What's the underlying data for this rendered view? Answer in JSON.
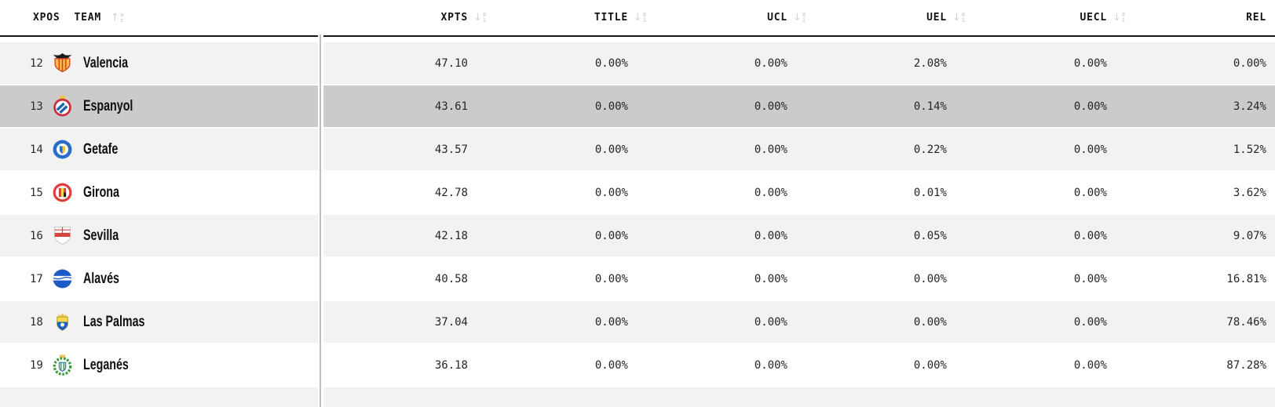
{
  "table": {
    "columns": [
      {
        "id": "xpos",
        "label": "XPOS",
        "sortable": false,
        "sort_icon": null
      },
      {
        "id": "team",
        "label": "TEAM",
        "sortable": true,
        "sort_icon": "sort-alpha-icon"
      },
      {
        "id": "xpts",
        "label": "XPTS",
        "sortable": true,
        "sort_icon": "sort-numeric-icon"
      },
      {
        "id": "title",
        "label": "TITLE",
        "sortable": true,
        "sort_icon": "sort-numeric-icon"
      },
      {
        "id": "ucl",
        "label": "UCL",
        "sortable": true,
        "sort_icon": "sort-numeric-icon"
      },
      {
        "id": "uel",
        "label": "UEL",
        "sortable": true,
        "sort_icon": "sort-numeric-icon"
      },
      {
        "id": "uecl",
        "label": "UECL",
        "sortable": true,
        "sort_icon": "sort-numeric-icon"
      },
      {
        "id": "rel",
        "label": "REL",
        "sortable": true,
        "sort_icon": "sort-numeric-icon"
      }
    ],
    "rows": [
      {
        "xpos": "12",
        "team": "Valencia",
        "crest": "valencia-crest",
        "crest_id": "valencia",
        "xpts": "47.10",
        "title": "0.00%",
        "ucl": "0.00%",
        "uel": "2.08%",
        "uecl": "0.00%",
        "rel": "0.00%",
        "zebra": "gray",
        "highlighted": false
      },
      {
        "xpos": "13",
        "team": "Espanyol",
        "crest": "espanyol-crest",
        "crest_id": "espanyol",
        "xpts": "43.61",
        "title": "0.00%",
        "ucl": "0.00%",
        "uel": "0.14%",
        "uecl": "0.00%",
        "rel": "3.24%",
        "zebra": "white",
        "highlighted": true
      },
      {
        "xpos": "14",
        "team": "Getafe",
        "crest": "getafe-crest",
        "crest_id": "getafe",
        "xpts": "43.57",
        "title": "0.00%",
        "ucl": "0.00%",
        "uel": "0.22%",
        "uecl": "0.00%",
        "rel": "1.52%",
        "zebra": "gray",
        "highlighted": false
      },
      {
        "xpos": "15",
        "team": "Girona",
        "crest": "girona-crest",
        "crest_id": "girona",
        "xpts": "42.78",
        "title": "0.00%",
        "ucl": "0.00%",
        "uel": "0.01%",
        "uecl": "0.00%",
        "rel": "3.62%",
        "zebra": "white",
        "highlighted": false
      },
      {
        "xpos": "16",
        "team": "Sevilla",
        "crest": "sevilla-crest",
        "crest_id": "sevilla",
        "xpts": "42.18",
        "title": "0.00%",
        "ucl": "0.00%",
        "uel": "0.05%",
        "uecl": "0.00%",
        "rel": "9.07%",
        "zebra": "gray",
        "highlighted": false
      },
      {
        "xpos": "17",
        "team": "Alavés",
        "crest": "alaves-crest",
        "crest_id": "alaves",
        "xpts": "40.58",
        "title": "0.00%",
        "ucl": "0.00%",
        "uel": "0.00%",
        "uecl": "0.00%",
        "rel": "16.81%",
        "zebra": "white",
        "highlighted": false
      },
      {
        "xpos": "18",
        "team": "Las Palmas",
        "crest": "laspalmas-crest",
        "crest_id": "laspalmas",
        "xpts": "37.04",
        "title": "0.00%",
        "ucl": "0.00%",
        "uel": "0.00%",
        "uecl": "0.00%",
        "rel": "78.46%",
        "zebra": "gray",
        "highlighted": false
      },
      {
        "xpos": "19",
        "team": "Leganés",
        "crest": "leganes-crest",
        "crest_id": "leganes",
        "xpts": "36.18",
        "title": "0.00%",
        "ucl": "0.00%",
        "uel": "0.00%",
        "uecl": "0.00%",
        "rel": "87.28%",
        "zebra": "white",
        "highlighted": false
      }
    ]
  },
  "colors": {
    "row_gray": "#f2f2f2",
    "row_white": "#ffffff",
    "row_highlight": "#cbcbcb",
    "header_border": "#15151e",
    "sort_icon": "#d4d4d4",
    "text": "#262626"
  }
}
